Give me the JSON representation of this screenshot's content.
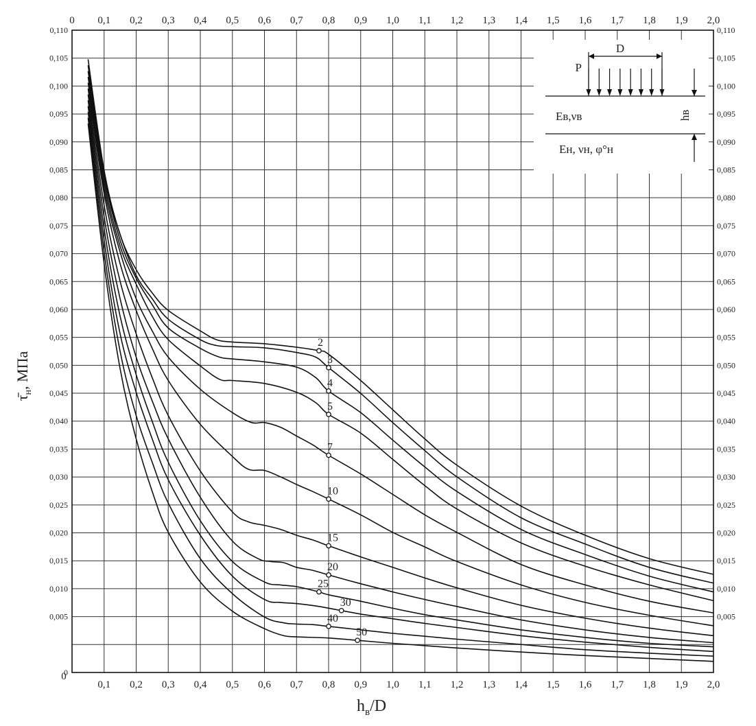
{
  "chart_data": {
    "type": "line",
    "xlabel": "h",
    "xlabel_sub": "в",
    "xlabel_tail": "/D",
    "ylabel": "τ̄",
    "ylabel_sub": "н",
    "ylabel_tail": ", МПа",
    "xlim": [
      0,
      2.0
    ],
    "ylim": [
      0,
      0.11
    ],
    "grid": true,
    "x_ticks": [
      "0",
      "0,1",
      "0,2",
      "0,3",
      "0,4",
      "0,5",
      "0,6",
      "0,7",
      "0,8",
      "0,9",
      "1,0",
      "1,1",
      "1,2",
      "1,3",
      "1,4",
      "1,5",
      "1,6",
      "1,7",
      "1,8",
      "1,9",
      "2,0"
    ],
    "x_top_ticks": [
      "0",
      "0,1",
      "0,2",
      "0,3",
      "0,4",
      "0,5",
      "0,6",
      "0,7",
      "0,8",
      "0,9",
      "1,0",
      "1,1",
      "1,2",
      "1,3",
      "1,4",
      "1,5",
      "1,6",
      "1,7",
      "1,8",
      "1,9",
      "2,0"
    ],
    "y_ticks_left": [
      "0",
      "",
      "0,005",
      "0,010",
      "0,015",
      "0,020",
      "0,025",
      "0,030",
      "0,035",
      "0,040",
      "0,045",
      "0,050",
      "0,055",
      "0,060",
      "0,065",
      "0,070",
      "0,075",
      "0,080",
      "0,085",
      "0,090",
      "0,095",
      "0,100",
      "0,105",
      "0,110"
    ],
    "y_ticks_right": [
      "",
      "",
      "0,005",
      "0,010",
      "0,015",
      "0,020",
      "0,025",
      "0,030",
      "0,035",
      "0,040",
      "0,045",
      "0,050",
      "0,055",
      "0,060",
      "0,065",
      "0,070",
      "0,075",
      "0,080",
      "0,085",
      "0,090",
      "0,095",
      "0,100",
      "0,105",
      "0,110"
    ],
    "series": [
      {
        "name": "2",
        "marker": [
          0.77,
          0.0551
        ],
        "x": [
          0.05,
          0.1,
          0.15,
          0.2,
          0.25,
          0.3,
          0.4,
          0.45,
          0.5,
          0.6,
          0.7,
          0.77,
          0.8,
          0.9,
          1.0,
          1.1,
          1.2,
          1.4,
          1.6,
          1.8,
          2.0
        ],
        "y": [
          0.105,
          0.086,
          0.075,
          0.069,
          0.065,
          0.062,
          0.0585,
          0.057,
          0.0566,
          0.0563,
          0.0557,
          0.0551,
          0.0545,
          0.05,
          0.045,
          0.04,
          0.0355,
          0.0285,
          0.0235,
          0.0195,
          0.0168
        ]
      },
      {
        "name": "3",
        "marker": [
          0.8,
          0.0522
        ],
        "x": [
          0.05,
          0.1,
          0.15,
          0.2,
          0.25,
          0.3,
          0.4,
          0.45,
          0.5,
          0.6,
          0.7,
          0.76,
          0.8,
          0.9,
          1.0,
          1.1,
          1.2,
          1.4,
          1.6,
          1.8,
          2.0
        ],
        "y": [
          0.104,
          0.085,
          0.075,
          0.068,
          0.064,
          0.0605,
          0.057,
          0.056,
          0.0558,
          0.0556,
          0.0548,
          0.054,
          0.0522,
          0.0478,
          0.0428,
          0.038,
          0.0335,
          0.0265,
          0.022,
          0.018,
          0.0153
        ]
      },
      {
        "name": "4",
        "marker": [
          0.8,
          0.0482
        ],
        "x": [
          0.05,
          0.1,
          0.15,
          0.2,
          0.25,
          0.3,
          0.4,
          0.46,
          0.5,
          0.6,
          0.7,
          0.76,
          0.8,
          0.9,
          1.0,
          1.1,
          1.2,
          1.4,
          1.6,
          1.8,
          2.0
        ],
        "y": [
          0.103,
          0.085,
          0.074,
          0.0675,
          0.063,
          0.059,
          0.0555,
          0.054,
          0.0537,
          0.0532,
          0.0523,
          0.0505,
          0.0482,
          0.0445,
          0.0398,
          0.0352,
          0.031,
          0.0245,
          0.0202,
          0.0165,
          0.0138
        ]
      },
      {
        "name": "5",
        "marker": [
          0.8,
          0.0442
        ],
        "x": [
          0.05,
          0.1,
          0.15,
          0.2,
          0.25,
          0.3,
          0.4,
          0.46,
          0.5,
          0.6,
          0.7,
          0.76,
          0.8,
          0.9,
          1.0,
          1.1,
          1.2,
          1.4,
          1.6,
          1.8,
          2.0
        ],
        "y": [
          0.102,
          0.084,
          0.073,
          0.0665,
          0.061,
          0.057,
          0.0525,
          0.0502,
          0.05,
          0.0495,
          0.048,
          0.0462,
          0.0442,
          0.041,
          0.0365,
          0.032,
          0.028,
          0.0222,
          0.0182,
          0.015,
          0.0123
        ]
      },
      {
        "name": "7",
        "marker": [
          0.8,
          0.0372
        ],
        "x": [
          0.05,
          0.1,
          0.15,
          0.2,
          0.25,
          0.3,
          0.4,
          0.5,
          0.56,
          0.6,
          0.65,
          0.7,
          0.75,
          0.8,
          0.9,
          1.0,
          1.1,
          1.2,
          1.4,
          1.6,
          1.8,
          2.0
        ],
        "y": [
          0.101,
          0.083,
          0.072,
          0.064,
          0.0585,
          0.054,
          0.0485,
          0.0445,
          0.0428,
          0.0428,
          0.042,
          0.0405,
          0.039,
          0.0372,
          0.034,
          0.0305,
          0.027,
          0.024,
          0.0185,
          0.015,
          0.0122,
          0.0102
        ]
      },
      {
        "name": "10",
        "marker": [
          0.8,
          0.0297
        ],
        "x": [
          0.05,
          0.1,
          0.15,
          0.2,
          0.25,
          0.3,
          0.4,
          0.5,
          0.55,
          0.6,
          0.65,
          0.7,
          0.75,
          0.8,
          0.9,
          1.0,
          1.1,
          1.2,
          1.4,
          1.6,
          1.8,
          2.0
        ],
        "y": [
          0.1,
          0.082,
          0.07,
          0.062,
          0.0555,
          0.05,
          0.0425,
          0.037,
          0.0348,
          0.0346,
          0.0335,
          0.0322,
          0.031,
          0.0297,
          0.027,
          0.024,
          0.0215,
          0.019,
          0.015,
          0.012,
          0.0098,
          0.008
        ]
      },
      {
        "name": "15",
        "marker": [
          0.8,
          0.0217
        ],
        "x": [
          0.05,
          0.1,
          0.15,
          0.2,
          0.25,
          0.3,
          0.4,
          0.5,
          0.55,
          0.6,
          0.65,
          0.7,
          0.75,
          0.8,
          0.9,
          1.0,
          1.1,
          1.2,
          1.4,
          1.6,
          1.8,
          2.0
        ],
        "y": [
          0.099,
          0.08,
          0.067,
          0.058,
          0.0505,
          0.044,
          0.0345,
          0.0275,
          0.0258,
          0.0252,
          0.0245,
          0.0235,
          0.0227,
          0.0217,
          0.0198,
          0.018,
          0.0162,
          0.0145,
          0.0115,
          0.0093,
          0.0076,
          0.0063
        ]
      },
      {
        "name": "20",
        "marker": [
          0.8,
          0.0167
        ],
        "x": [
          0.05,
          0.1,
          0.15,
          0.2,
          0.25,
          0.3,
          0.4,
          0.5,
          0.58,
          0.62,
          0.66,
          0.7,
          0.75,
          0.8,
          0.9,
          1.0,
          1.1,
          1.2,
          1.4,
          1.6,
          1.8,
          2.0
        ],
        "y": [
          0.098,
          0.078,
          0.064,
          0.054,
          0.0465,
          0.04,
          0.03,
          0.0225,
          0.0195,
          0.019,
          0.0188,
          0.018,
          0.0175,
          0.0167,
          0.0152,
          0.0138,
          0.0125,
          0.0113,
          0.009,
          0.0073,
          0.006,
          0.0051
        ]
      },
      {
        "name": "25",
        "marker": [
          0.77,
          0.0138
        ],
        "x": [
          0.05,
          0.1,
          0.15,
          0.2,
          0.25,
          0.3,
          0.4,
          0.5,
          0.6,
          0.65,
          0.7,
          0.77,
          0.8,
          0.9,
          1.0,
          1.1,
          1.2,
          1.4,
          1.6,
          1.8,
          2.0
        ],
        "y": [
          0.097,
          0.076,
          0.061,
          0.051,
          0.043,
          0.036,
          0.026,
          0.019,
          0.0155,
          0.015,
          0.0147,
          0.0138,
          0.0133,
          0.0122,
          0.011,
          0.0099,
          0.009,
          0.0073,
          0.006,
          0.005,
          0.0044
        ]
      },
      {
        "name": "30",
        "marker": [
          0.84,
          0.0106
        ],
        "x": [
          0.05,
          0.1,
          0.15,
          0.2,
          0.25,
          0.3,
          0.4,
          0.5,
          0.6,
          0.65,
          0.7,
          0.77,
          0.84,
          0.9,
          1.0,
          1.1,
          1.2,
          1.4,
          1.6,
          1.8,
          2.0
        ],
        "y": [
          0.096,
          0.074,
          0.058,
          0.048,
          0.04,
          0.033,
          0.0235,
          0.0165,
          0.0125,
          0.012,
          0.0118,
          0.0113,
          0.0106,
          0.01,
          0.0092,
          0.0084,
          0.0077,
          0.0063,
          0.0052,
          0.0043,
          0.0036
        ]
      },
      {
        "name": "40",
        "marker": [
          0.8,
          0.0079
        ],
        "x": [
          0.05,
          0.1,
          0.15,
          0.2,
          0.25,
          0.3,
          0.4,
          0.5,
          0.6,
          0.66,
          0.7,
          0.75,
          0.8,
          0.9,
          1.0,
          1.1,
          1.2,
          1.4,
          1.6,
          1.8,
          2.0
        ],
        "y": [
          0.095,
          0.072,
          0.055,
          0.044,
          0.036,
          0.029,
          0.0195,
          0.0135,
          0.0095,
          0.0085,
          0.0083,
          0.0082,
          0.0079,
          0.0073,
          0.0067,
          0.0062,
          0.0057,
          0.0048,
          0.0039,
          0.0033,
          0.0028
        ]
      },
      {
        "name": "50",
        "marker": [
          0.89,
          0.0055
        ],
        "x": [
          0.05,
          0.1,
          0.15,
          0.2,
          0.25,
          0.3,
          0.4,
          0.5,
          0.6,
          0.66,
          0.7,
          0.8,
          0.89,
          1.0,
          1.1,
          1.2,
          1.4,
          1.6,
          1.8,
          2.0
        ],
        "y": [
          0.094,
          0.07,
          0.052,
          0.04,
          0.031,
          0.024,
          0.0155,
          0.0105,
          0.0075,
          0.0063,
          0.0061,
          0.0059,
          0.0055,
          0.005,
          0.0046,
          0.0042,
          0.0035,
          0.0029,
          0.0024,
          0.0019
        ]
      }
    ]
  },
  "inset": {
    "D": "D",
    "P": "P",
    "layer1": "Eв,νв",
    "layer2": "Eн, νн, φ°н",
    "h": "hв"
  }
}
